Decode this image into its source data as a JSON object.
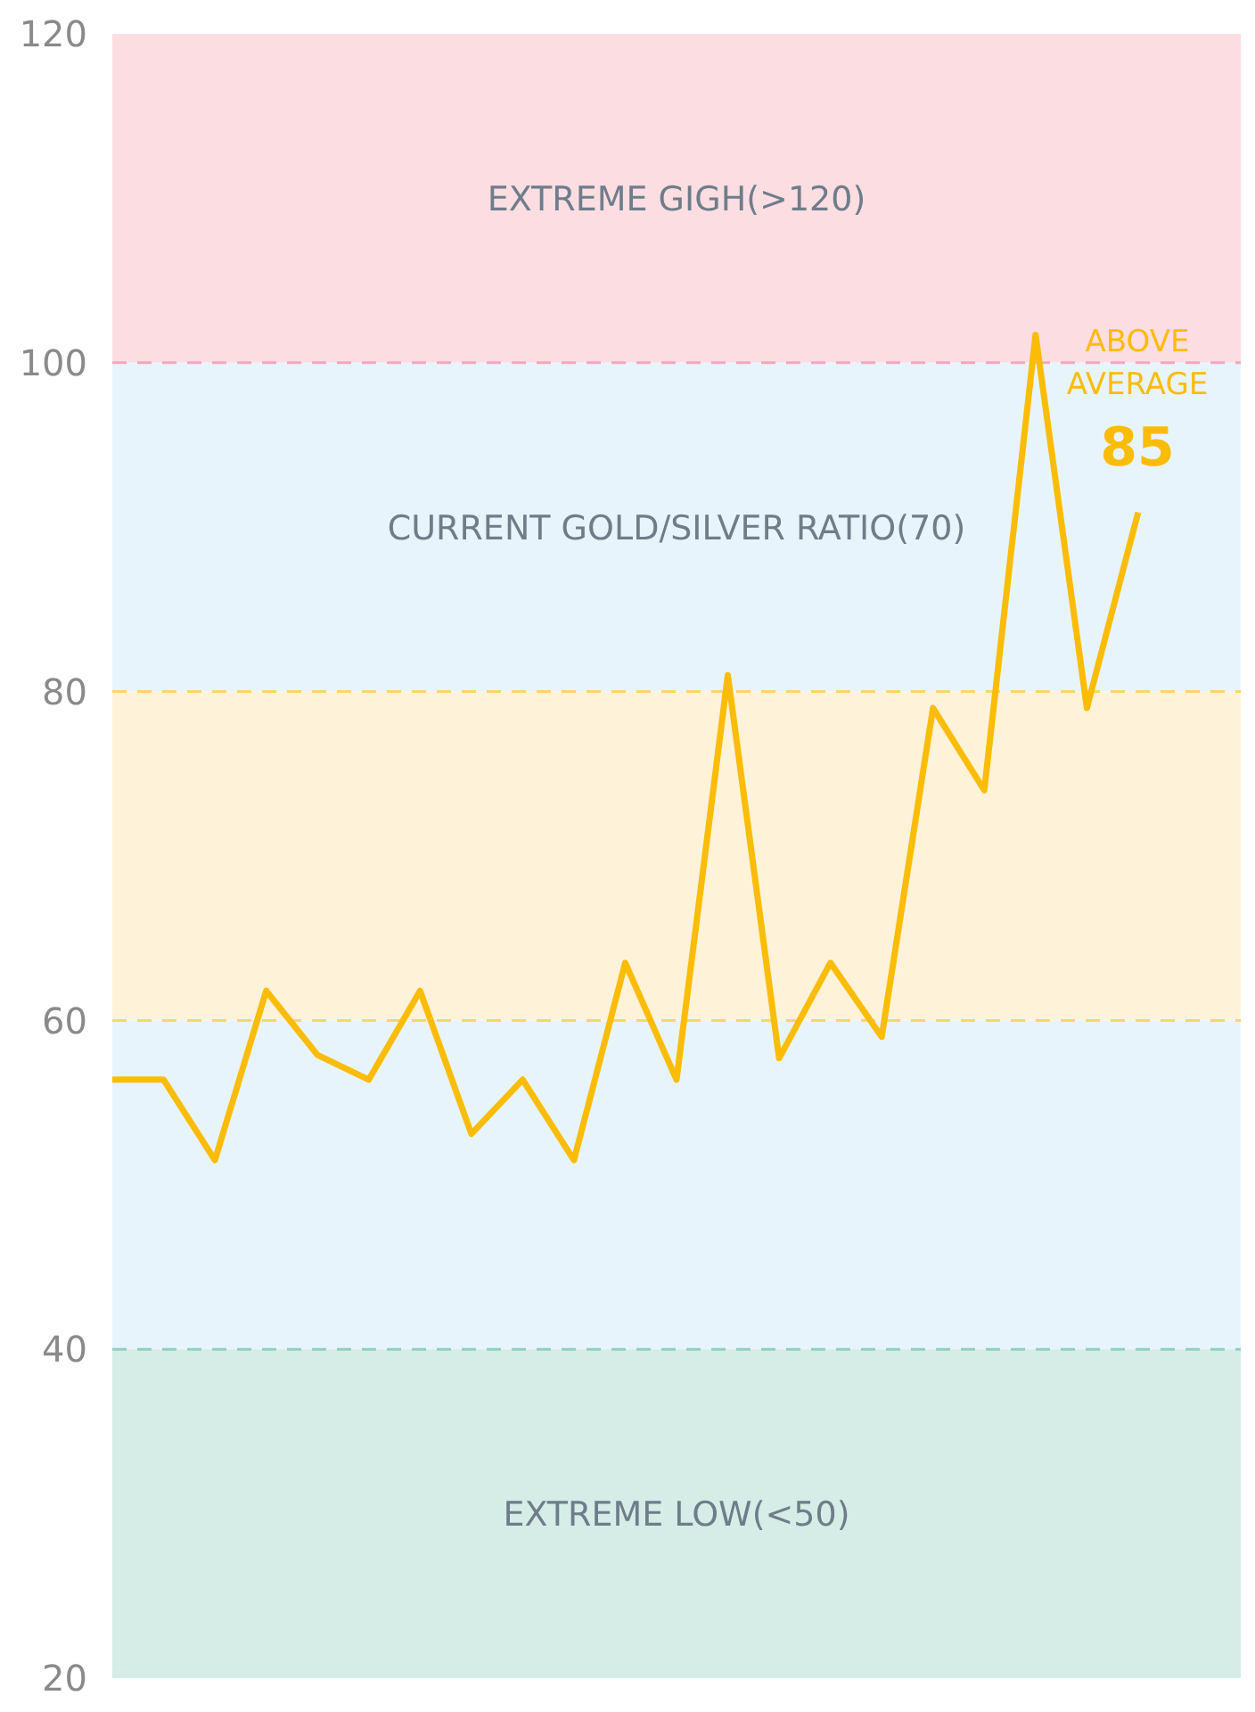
{
  "chart_data": {
    "type": "line",
    "categories": [
      null,
      null,
      null,
      null,
      null,
      null,
      null,
      null,
      null,
      null,
      null,
      null,
      null,
      null,
      null,
      null,
      null,
      null,
      null,
      null,
      null,
      null,
      null
    ],
    "series": [
      {
        "color": "#fbbc05",
        "values": [
          56.4,
          56.4,
          51.5,
          61.8,
          57.9,
          56.4,
          61.8,
          53.1,
          56.4,
          51.5,
          63.5,
          56.4,
          81,
          57.7,
          63.5,
          59,
          79,
          74,
          101.7,
          79,
          90.9,
          null,
          null
        ]
      }
    ],
    "ylim": [
      20,
      120
    ],
    "yticks": [
      20,
      40,
      60,
      80,
      100,
      120
    ],
    "grid": false,
    "legend": false,
    "marker": "none",
    "line_style": "solid",
    "tick_labels": "y",
    "bands": [
      {
        "axis": "y",
        "from": 100,
        "to": 120,
        "label": "EXTREME GIGH(>120)",
        "color": "#fcdde2"
      },
      {
        "axis": "y",
        "from": 80,
        "to": 100,
        "label": "CURRENT GOLD/SILVER RATIO(70)",
        "color": "#e8f4fc"
      },
      {
        "axis": "y",
        "from": 60,
        "to": 80,
        "label": null,
        "color": "#fef2d8"
      },
      {
        "axis": "y",
        "from": 40,
        "to": 60,
        "label": null,
        "color": "#e8f4fc"
      },
      {
        "axis": "y",
        "from": 20,
        "to": 40,
        "label": "EXTREME LOW(<50)",
        "color": "#d5ede6"
      }
    ],
    "ref_lines": [
      {
        "axis": "y",
        "value": 100,
        "label": null,
        "color": "#f4a7b9",
        "line_style": "dashed"
      },
      {
        "axis": "y",
        "value": 80,
        "label": null,
        "color": "#fdd36b",
        "line_style": "dashed"
      },
      {
        "axis": "y",
        "value": 60,
        "label": null,
        "color": "#fdd36b",
        "line_style": "dashed"
      },
      {
        "axis": "y",
        "value": 40,
        "label": null,
        "color": "#8fd0c0",
        "line_style": "dashed"
      }
    ],
    "annotations": [
      "ABOVE AVERAGE",
      "85"
    ]
  }
}
